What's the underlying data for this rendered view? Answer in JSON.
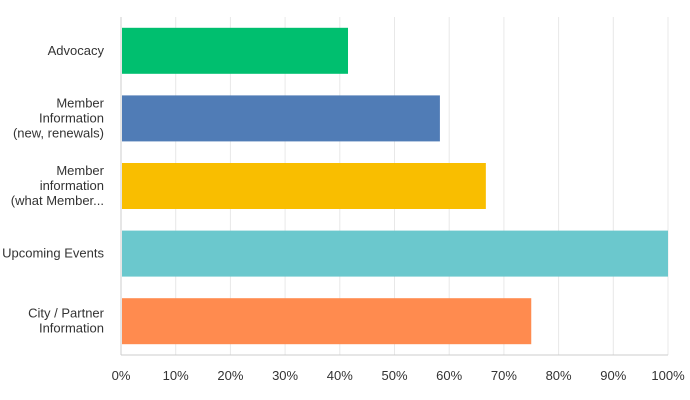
{
  "chart_data": {
    "type": "bar",
    "orientation": "horizontal",
    "categories": [
      [
        "Advocacy"
      ],
      [
        "Member",
        "Information",
        "(new, renewals)"
      ],
      [
        "Member",
        "information",
        "(what Member..."
      ],
      [
        "Upcoming Events"
      ],
      [
        "City / Partner",
        "Information"
      ]
    ],
    "values": [
      41.5,
      58.3,
      66.7,
      100,
      75
    ],
    "colors": [
      "#00bf6f",
      "#507cb6",
      "#f9be00",
      "#6bc8cd",
      "#ff8b4f"
    ],
    "xlim": [
      0,
      100
    ],
    "x_ticks": [
      "0%",
      "10%",
      "20%",
      "30%",
      "40%",
      "50%",
      "60%",
      "70%",
      "80%",
      "90%",
      "100%"
    ],
    "grid": true,
    "title": "",
    "xlabel": "",
    "ylabel": ""
  }
}
